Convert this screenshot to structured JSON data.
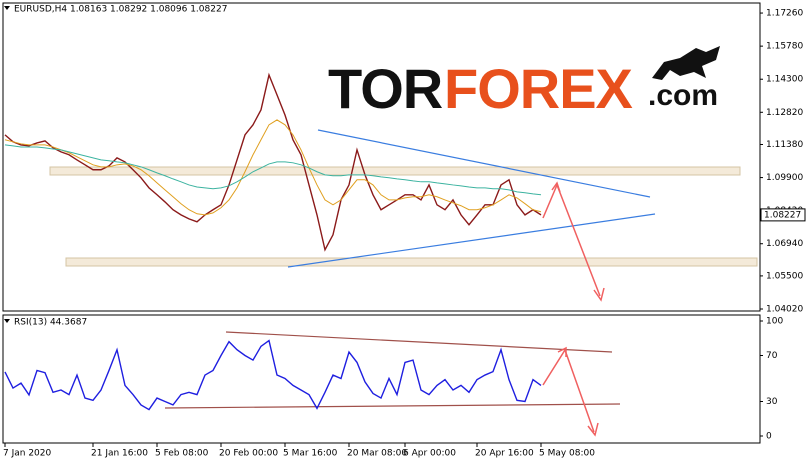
{
  "logo": {
    "part1": "TOR",
    "part2": "FOREX",
    "part3": ".com"
  },
  "chart_data": [
    {
      "type": "line",
      "title": "EURUSD,H4 1.08163 1.08292 1.08096 1.08227",
      "last_price_label": "1.08227",
      "ylim": [
        1.0393,
        1.1771
      ],
      "yticks": [
        {
          "value": 1.1726,
          "label": "1.17260"
        },
        {
          "value": 1.1578,
          "label": "1.15780"
        },
        {
          "value": 1.143,
          "label": "1.14300"
        },
        {
          "value": 1.1282,
          "label": "1.12820"
        },
        {
          "value": 1.1138,
          "label": "1.11380"
        },
        {
          "value": 1.099,
          "label": "1.09900"
        },
        {
          "value": 1.0842,
          "label": "1.08420"
        },
        {
          "value": 1.0694,
          "label": "1.06940"
        },
        {
          "value": 1.055,
          "label": "1.05500"
        },
        {
          "value": 1.0402,
          "label": "1.04020"
        }
      ],
      "series": [
        {
          "color": "#8b1a1a",
          "values": [
            1.1181,
            1.115,
            1.1136,
            1.1132,
            1.1145,
            1.1154,
            1.1123,
            1.1105,
            1.1092,
            1.1069,
            1.1047,
            1.1025,
            1.1025,
            1.1042,
            1.1078,
            1.106,
            1.1025,
            1.0989,
            1.0944,
            1.0913,
            1.0881,
            1.0846,
            1.0823,
            1.0805,
            1.0792,
            1.0823,
            1.0846,
            1.0868,
            1.0957,
            1.1069,
            1.1181,
            1.1226,
            1.1293,
            1.1449,
            1.136,
            1.127,
            1.1159,
            1.1092,
            1.0957,
            1.0823,
            1.0667,
            1.0734,
            1.089,
            1.0957,
            1.1114,
            1.1002,
            1.0913,
            1.0846,
            1.0868,
            1.089,
            1.0913,
            1.0913,
            1.089,
            1.0957,
            1.0868,
            1.0846,
            1.089,
            1.0823,
            1.0779,
            1.0823,
            1.0868,
            1.0868,
            1.0957,
            1.098,
            1.0868,
            1.0823,
            1.0846,
            1.0823
          ]
        },
        {
          "color": "#e0a020",
          "values": [
            1.1159,
            1.115,
            1.1141,
            1.1136,
            1.1136,
            1.1136,
            1.1127,
            1.1114,
            1.1101,
            1.1083,
            1.1065,
            1.1047,
            1.1038,
            1.1038,
            1.1047,
            1.1051,
            1.1042,
            1.1025,
            1.0998,
            1.0966,
            1.0935,
            1.0904,
            1.0873,
            1.0846,
            1.0828,
            1.0823,
            1.0832,
            1.0855,
            1.089,
            1.0944,
            1.1016,
            1.1092,
            1.1159,
            1.1226,
            1.1248,
            1.1226,
            1.1181,
            1.1114,
            1.1033,
            1.0957,
            1.089,
            1.0868,
            1.089,
            1.0935,
            1.098,
            1.098,
            1.0957,
            1.0913,
            1.089,
            1.089,
            1.0899,
            1.0904,
            1.0904,
            1.0913,
            1.0904,
            1.089,
            1.0877,
            1.0864,
            1.0846,
            1.0846,
            1.0855,
            1.0868,
            1.089,
            1.0913,
            1.0899,
            1.0873,
            1.0846,
            1.0837
          ]
        },
        {
          "color": "#3cb3a0",
          "values": [
            1.1136,
            1.1132,
            1.1127,
            1.1127,
            1.1127,
            1.1123,
            1.1118,
            1.1114,
            1.1105,
            1.1096,
            1.1087,
            1.1078,
            1.1069,
            1.1065,
            1.106,
            1.1056,
            1.1047,
            1.1038,
            1.1025,
            1.1011,
            1.0998,
            1.0984,
            1.0971,
            1.0957,
            1.0948,
            1.0944,
            1.094,
            1.0944,
            1.0953,
            1.0971,
            1.0993,
            1.1016,
            1.1033,
            1.1051,
            1.106,
            1.106,
            1.1056,
            1.1047,
            1.1033,
            1.1016,
            1.1002,
            1.0998,
            1.0998,
            1.1002,
            1.1002,
            1.1002,
            1.0998,
            1.0993,
            1.0989,
            1.0984,
            1.098,
            1.0975,
            1.0971,
            1.0971,
            1.0966,
            1.0962,
            1.0957,
            1.0953,
            1.0948,
            1.0944,
            1.0944,
            1.094,
            1.094,
            1.0935,
            1.0926,
            1.0922,
            1.0917,
            1.0913
          ]
        }
      ]
    },
    {
      "type": "line",
      "title": "RSI(13) 44.3687",
      "categories": [
        "7 Jan 2020",
        null,
        null,
        null,
        null,
        null,
        null,
        null,
        null,
        null,
        null,
        "21 Jan 16:00",
        null,
        null,
        null,
        null,
        null,
        null,
        null,
        "5 Feb 08:00",
        null,
        null,
        null,
        null,
        null,
        null,
        null,
        "20 Feb 00:00",
        null,
        null,
        null,
        null,
        null,
        null,
        null,
        "5 Mar 16:00",
        null,
        null,
        null,
        null,
        null,
        null,
        null,
        "20 Mar 08:00",
        null,
        null,
        null,
        null,
        null,
        null,
        "6 Apr 00:00",
        null,
        null,
        null,
        null,
        null,
        null,
        null,
        null,
        "20 Apr 16:00",
        null,
        null,
        null,
        null,
        null,
        null,
        null,
        "5 May 08:00"
      ],
      "ylim": [
        0,
        100
      ],
      "yticks": [
        0,
        30,
        70,
        100
      ],
      "series": [
        {
          "color": "#1f1fe0",
          "values": [
            55.7,
            41.7,
            46,
            35.7,
            57,
            55,
            38,
            40,
            36,
            53,
            33,
            31,
            40,
            57,
            75,
            44,
            36,
            27,
            23,
            33,
            30,
            27,
            36,
            38,
            36,
            53,
            57,
            70,
            82,
            75,
            70,
            66,
            78,
            83,
            53,
            50,
            44,
            40,
            36,
            24,
            38,
            53,
            50,
            73,
            64,
            47,
            37,
            33,
            50,
            36,
            64,
            66,
            40,
            36,
            44,
            49,
            40,
            44,
            38,
            49,
            53,
            56,
            75,
            49,
            31,
            30,
            49,
            44
          ]
        }
      ]
    }
  ]
}
